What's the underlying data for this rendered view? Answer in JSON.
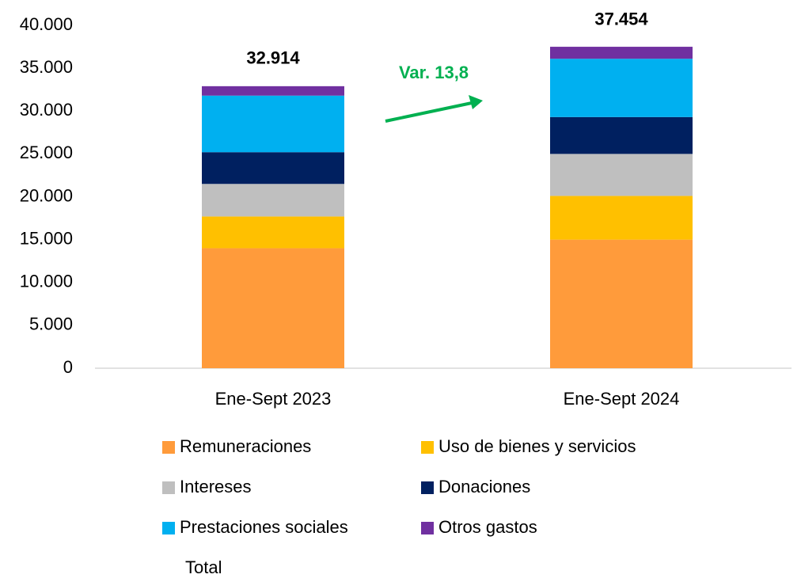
{
  "chart_data": {
    "type": "stacked_bar",
    "categories": [
      "Ene-Sept 2023",
      "Ene-Sept 2024"
    ],
    "series": [
      {
        "name": "Remuneraciones",
        "color": "#FF9B3B",
        "values": [
          14000,
          15000
        ]
      },
      {
        "name": "Uso de bienes y servicios",
        "color": "#FFC000",
        "values": [
          3700,
          5100
        ]
      },
      {
        "name": "Intereses",
        "color": "#BFBFBF",
        "values": [
          3800,
          4900
        ]
      },
      {
        "name": "Donaciones",
        "color": "#002060",
        "values": [
          3700,
          4300
        ]
      },
      {
        "name": "Prestaciones sociales",
        "color": "#00B0F0",
        "values": [
          6600,
          6800
        ]
      },
      {
        "name": "Otros gastos",
        "color": "#7030A0",
        "values": [
          1100,
          1400
        ]
      }
    ],
    "total": {
      "name": "Total",
      "values": [
        32914,
        37454
      ],
      "value_labels": [
        "32.914",
        "37.454"
      ]
    },
    "annotation": {
      "text": "Var. 13,8",
      "color": "#00B050"
    },
    "ylim": [
      0,
      40000
    ],
    "yticks": [
      0,
      {
        "value": 5000,
        "label": "5.000"
      },
      {
        "value": 10000,
        "label": "10.000"
      },
      {
        "value": 15000,
        "label": "15.000"
      },
      {
        "value": 20000,
        "label": "20.000"
      },
      {
        "value": 25000,
        "label": "25.000"
      },
      {
        "value": 30000,
        "label": "30.000"
      },
      {
        "value": 35000,
        "label": "35.000"
      },
      {
        "value": 40000,
        "label": "40.000"
      }
    ],
    "grid": false
  }
}
